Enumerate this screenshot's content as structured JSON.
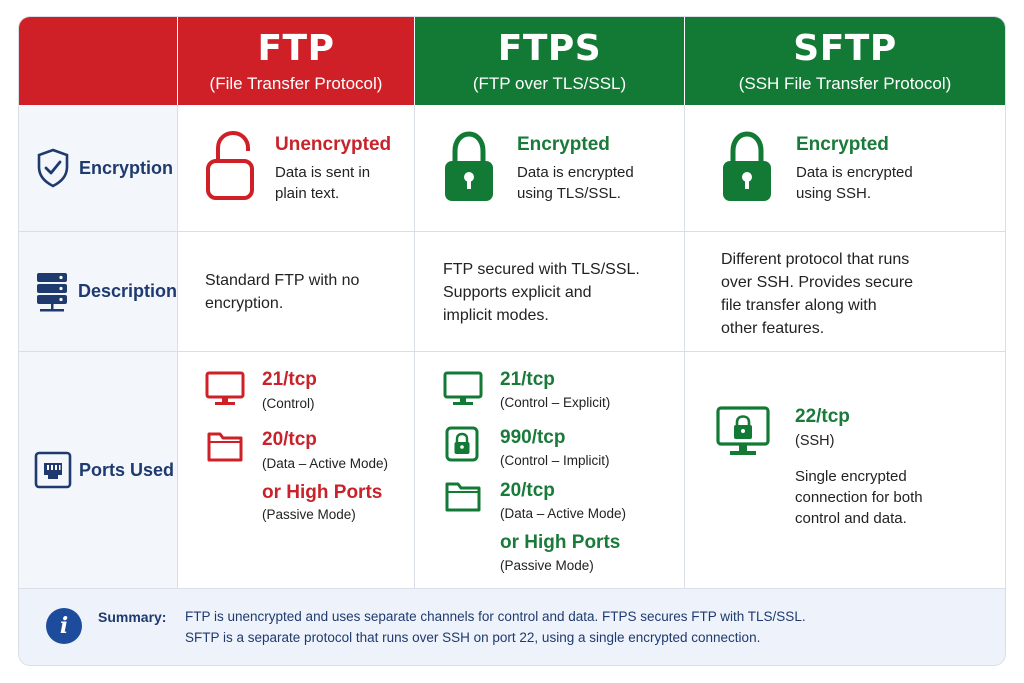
{
  "columns": [
    {
      "title": "FTP",
      "subtitle": "(File Transfer Protocol)"
    },
    {
      "title": "FTPS",
      "subtitle": "(FTP over TLS/SSL)"
    },
    {
      "title": "SFTP",
      "subtitle": "(SSH File Transfer Protocol)"
    }
  ],
  "rows": {
    "encryption": {
      "label": "Encryption"
    },
    "description": {
      "label": "Description"
    },
    "ports": {
      "label": "Ports Used"
    }
  },
  "encryption": [
    {
      "status": "Unencrypted",
      "line1": "Data is sent in",
      "line2": "plain text."
    },
    {
      "status": "Encrypted",
      "line1": "Data is encrypted",
      "line2": "using TLS/SSL."
    },
    {
      "status": "Encrypted",
      "line1": "Data is encrypted",
      "line2": "using SSH."
    }
  ],
  "description": [
    {
      "lines": [
        "Standard FTP with no",
        "encryption."
      ]
    },
    {
      "lines": [
        "FTP secured with TLS/SSL.",
        "Supports explicit and",
        "implicit modes."
      ]
    },
    {
      "lines": [
        "Different protocol that runs",
        "over SSH. Provides secure",
        "file transfer along with",
        "other features."
      ]
    }
  ],
  "ports": {
    "ftp": [
      {
        "port": "21/tcp",
        "note": "(Control)"
      },
      {
        "port": "20/tcp",
        "note": "(Data – Active Mode)"
      },
      {
        "port": "or High Ports",
        "note": "(Passive Mode)"
      }
    ],
    "ftps": [
      {
        "port": "21/tcp",
        "note": "(Control – Explicit)"
      },
      {
        "port": "990/tcp",
        "note": "(Control – Implicit)"
      },
      {
        "port": "20/tcp",
        "note": "(Data – Active Mode)"
      },
      {
        "port": "or High Ports",
        "note": "(Passive Mode)"
      }
    ],
    "sftp": {
      "port": "22/tcp",
      "note": "(SSH)",
      "extra": [
        "Single encrypted",
        "connection for both",
        "control and data."
      ]
    }
  },
  "summary": {
    "label": "Summary:",
    "line1": "FTP is unencrypted and uses separate channels for control and data. FTPS secures FTP with TLS/SSL.",
    "line2": "SFTP is a separate protocol that runs over SSH on port 22, using a single encrypted connection."
  },
  "colors": {
    "ftp": "#cf2027",
    "ftps": "#137a35",
    "sftp": "#137a35",
    "navy": "#1e3a6e"
  }
}
